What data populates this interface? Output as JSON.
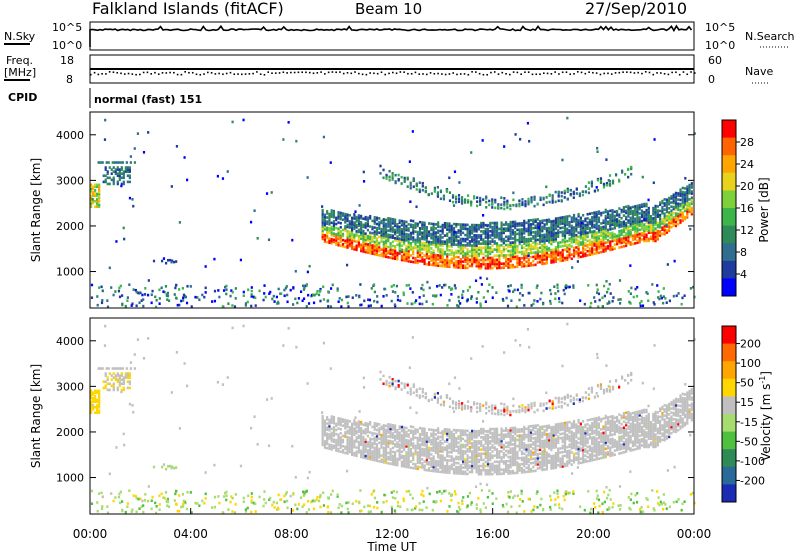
{
  "header": {
    "title": "Falkland Islands (fitACF)",
    "beam": "Beam 10",
    "date": "27/Sep/2010"
  },
  "params": {
    "nsky_label": "N.Sky",
    "nsky_ticks": [
      "10^5",
      "10^0"
    ],
    "nsearch_label": "N.Search",
    "nsearch_ticks": [
      "10^5",
      "10^0"
    ],
    "freq_label": "Freq.",
    "freq_unit": "[MHz]",
    "freq_ticks": [
      "18",
      "8"
    ],
    "nave_label": "Nave",
    "nave_ticks": [
      "60",
      "0"
    ],
    "cpid_label": "CPID",
    "cpid_value": "normal (fast) 151"
  },
  "chart_data": [
    {
      "type": "heatmap",
      "name": "power",
      "ylabel": "Slant Range [km]",
      "ylim": [
        200,
        4500
      ],
      "yticks": [
        "4000",
        "3000",
        "2000",
        "1000"
      ],
      "xlim": [
        0,
        24
      ],
      "colorbar": {
        "label": "Power [dB]",
        "range": [
          0,
          32
        ],
        "ticks": [
          "28",
          "24",
          "20",
          "16",
          "12",
          "8",
          "4"
        ],
        "colors": [
          "#0000ff",
          "#1e3c9e",
          "#2f6e8f",
          "#2e8b57",
          "#3cb54b",
          "#7dd23c",
          "#e8d21c",
          "#ffa500",
          "#ff6400",
          "#ff0000"
        ]
      },
      "regions": [
        {
          "x": [
            0.0,
            0.3
          ],
          "y": [
            2500,
            2900
          ],
          "level": "medium"
        },
        {
          "x": [
            0.5,
            1.6
          ],
          "y": [
            2950,
            3400
          ],
          "level": "low"
        },
        {
          "x": [
            0.3,
            1.8
          ],
          "y": [
            3400,
            3500
          ],
          "level": "low"
        },
        {
          "x": [
            2.5,
            3.6
          ],
          "y": [
            1150,
            1300
          ],
          "level": "low"
        },
        {
          "x": [
            9.2,
            23.9
          ],
          "y": [
            1100,
            2800
          ],
          "level": "band"
        },
        {
          "x": [
            11.5,
            21.5
          ],
          "y": [
            2600,
            3200
          ],
          "level": "arc"
        }
      ]
    },
    {
      "type": "heatmap",
      "name": "velocity",
      "ylabel": "Slant Range [km]",
      "ylim": [
        200,
        4500
      ],
      "yticks": [
        "4000",
        "3000",
        "2000",
        "1000"
      ],
      "xlim": [
        0,
        24
      ],
      "xticks": [
        "00:00",
        "04:00",
        "08:00",
        "12:00",
        "16:00",
        "20:00",
        "00:00"
      ],
      "xlabel": "Time UT",
      "colorbar": {
        "label": "Velocity [m s",
        "label_sup": "-1",
        "label_end": "]",
        "ticks": [
          "200",
          "100",
          "50",
          "15",
          "-15",
          "-50",
          "-100",
          "-200"
        ],
        "colors": [
          "#1a2cb4",
          "#2a6a9a",
          "#2e8b57",
          "#4fc040",
          "#a6dc70",
          "#c0c0c0",
          "#ffd700",
          "#ffa500",
          "#ff6a00",
          "#ff0000"
        ]
      },
      "regions": [
        {
          "x": [
            9.2,
            23.9
          ],
          "y": [
            1100,
            2800
          ],
          "value": "near zero (grey)"
        },
        {
          "x": [
            11.5,
            21.5
          ],
          "y": [
            2600,
            3200
          ],
          "value": "near zero (grey)"
        },
        {
          "x": [
            0.0,
            1.8
          ],
          "y": [
            2500,
            3500
          ],
          "value": "mixed"
        }
      ]
    }
  ]
}
